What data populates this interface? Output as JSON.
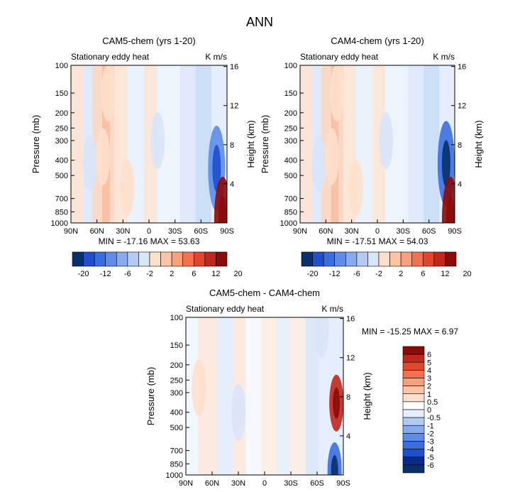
{
  "figure_title": "ANN",
  "chart_data": [
    {
      "type": "heatmap",
      "title": "CAM5-chem (yrs 1-20)",
      "subtitle_left": "Stationary eddy heat",
      "subtitle_right": "K m/s",
      "xlabel": "",
      "ylabel": "Pressure (mb)",
      "y2label": "Height (km)",
      "x_ticks": [
        "90N",
        "60N",
        "30N",
        "0",
        "30S",
        "60S",
        "90S"
      ],
      "y_ticks": [
        "100",
        "150",
        "200",
        "250",
        "300",
        "400",
        "500",
        "700",
        "850",
        "1000"
      ],
      "y2_ticks": [
        "16",
        "12",
        "8",
        "4"
      ],
      "min_label": "MIN = -17.16",
      "max_label": "MAX = 53.63",
      "colorbar": [
        "-20",
        "-12",
        "-6",
        "-2",
        "2",
        "6",
        "12",
        "20"
      ],
      "ylim": [
        1000,
        100
      ],
      "xlim": [
        "90N",
        "90S"
      ],
      "features": [
        {
          "lat": 68,
          "p": 420,
          "value": -3
        },
        {
          "lat": 53,
          "p": 380,
          "value": 3
        },
        {
          "lat": 47,
          "p": 150,
          "value": 2
        },
        {
          "lat": 25,
          "p": 600,
          "value": 2
        },
        {
          "lat": -10,
          "p": 300,
          "value": -2
        },
        {
          "lat": -78,
          "p": 450,
          "value": -12
        },
        {
          "lat": -85,
          "p": 950,
          "value": 20
        }
      ]
    },
    {
      "type": "heatmap",
      "title": "CAM4-chem (yrs 1-20)",
      "subtitle_left": "Stationary eddy heat",
      "subtitle_right": "K m/s",
      "xlabel": "",
      "ylabel": "Pressure (mb)",
      "y2label": "Height (km)",
      "x_ticks": [
        "90N",
        "60N",
        "30N",
        "0",
        "30S",
        "60S",
        "90S"
      ],
      "y_ticks": [
        "100",
        "150",
        "200",
        "250",
        "300",
        "400",
        "500",
        "700",
        "850",
        "1000"
      ],
      "y2_ticks": [
        "16",
        "12",
        "8",
        "4"
      ],
      "min_label": "MIN = -17.51",
      "max_label": "MAX = 54.03",
      "colorbar": [
        "-20",
        "-12",
        "-6",
        "-2",
        "2",
        "6",
        "12",
        "20"
      ],
      "ylim": [
        1000,
        100
      ],
      "xlim": [
        "90N",
        "90S"
      ],
      "features": [
        {
          "lat": 68,
          "p": 420,
          "value": -3
        },
        {
          "lat": 53,
          "p": 380,
          "value": 3
        },
        {
          "lat": 47,
          "p": 150,
          "value": 2
        },
        {
          "lat": 25,
          "p": 600,
          "value": 2
        },
        {
          "lat": -10,
          "p": 300,
          "value": -2
        },
        {
          "lat": -80,
          "p": 420,
          "value": -14
        },
        {
          "lat": -85,
          "p": 950,
          "value": 20
        }
      ]
    },
    {
      "type": "heatmap",
      "title": "CAM5-chem - CAM4-chem",
      "subtitle_left": "Stationary eddy heat",
      "subtitle_right": "K m/s",
      "xlabel": "",
      "ylabel": "Pressure (mb)",
      "y2label": "Height (km)",
      "x_ticks": [
        "90N",
        "60N",
        "30N",
        "0",
        "30S",
        "60S",
        "90S"
      ],
      "y_ticks": [
        "100",
        "150",
        "200",
        "250",
        "300",
        "400",
        "500",
        "700",
        "850",
        "1000"
      ],
      "y2_ticks": [
        "16",
        "12",
        "8",
        "4"
      ],
      "min_label": "MIN = -15.25",
      "max_label": "MAX =   6.97",
      "colorbar": [
        "6",
        "5",
        "4",
        "3",
        "2",
        "1",
        "0.5",
        "0",
        "-0.5",
        "-1",
        "-2",
        "-3",
        "-4",
        "-5",
        "-6"
      ],
      "ylim": [
        1000,
        100
      ],
      "xlim": [
        "90N",
        "90S"
      ],
      "features": [
        {
          "lat": 75,
          "p": 280,
          "value": 1
        },
        {
          "lat": 30,
          "p": 400,
          "value": -0.5
        },
        {
          "lat": -65,
          "p": 120,
          "value": -1
        },
        {
          "lat": -82,
          "p": 350,
          "value": 5
        },
        {
          "lat": -80,
          "p": 940,
          "value": -4
        }
      ]
    }
  ]
}
